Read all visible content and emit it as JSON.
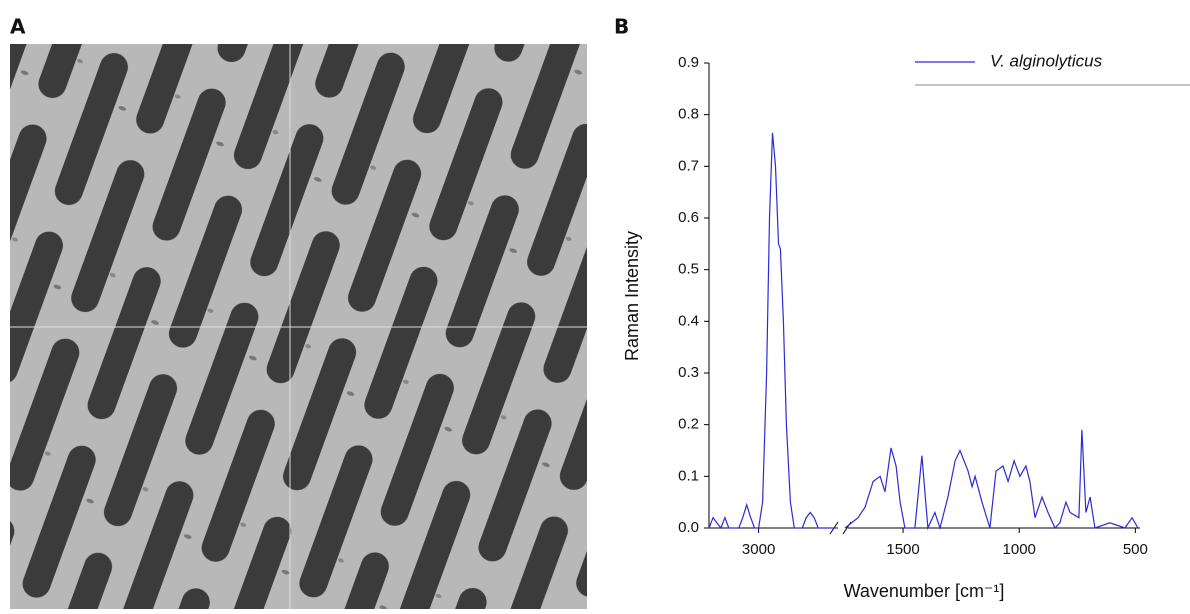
{
  "panel_a": {
    "label": "A"
  },
  "chart_data": {
    "type": "line",
    "panel_label": "B",
    "x_label": "Wavenumber [cm⁻¹]",
    "y_label": "Raman Intensity",
    "xlim": [
      [
        3250,
        2600
      ],
      [
        1750,
        480
      ]
    ],
    "xticks": [
      3000,
      1500,
      1000,
      500
    ],
    "ylim": [
      0,
      0.9
    ],
    "yticks": [
      {
        "value": 0,
        "label": "0.0"
      },
      0.1,
      0.2,
      0.3,
      0.4,
      0.5,
      0.6,
      0.7,
      0.8,
      0.9
    ],
    "legend": "top-right",
    "x": [
      3250,
      3230,
      3210,
      3190,
      3170,
      3150,
      3100,
      3080,
      3060,
      3040,
      3020,
      3000,
      2980,
      2960,
      2945,
      2930,
      2915,
      2900,
      2890,
      2875,
      2860,
      2840,
      2820,
      2780,
      2760,
      2740,
      2720,
      2700,
      2600,
      null,
      1750,
      1694,
      1664,
      1629,
      1599,
      1578,
      1552,
      1530,
      1513,
      1492,
      1449,
      1419,
      1393,
      1363,
      1341,
      1307,
      1276,
      1255,
      1220,
      1203,
      1190,
      1160,
      1126,
      1100,
      1070,
      1048,
      1022,
      997,
      971,
      954,
      932,
      902,
      876,
      846,
      825,
      799,
      781,
      743,
      730,
      713,
      695,
      674,
      609,
      545,
      514,
      489
    ],
    "series": [
      {
        "name": "V. alginolyticus",
        "color": "#2b2bd9",
        "values": [
          0.0,
          0.02,
          0.01,
          0.0,
          0.02,
          0.0,
          0.0,
          0.02,
          0.045,
          0.02,
          0.0,
          0.0,
          0.05,
          0.3,
          0.6,
          0.765,
          0.7,
          0.55,
          0.54,
          0.4,
          0.2,
          0.05,
          0.0,
          0.0,
          0.02,
          0.03,
          0.02,
          0.0,
          0.0,
          null,
          0.0,
          0.02,
          0.04,
          0.09,
          0.1,
          0.07,
          0.155,
          0.12,
          0.05,
          0.0,
          0.0,
          0.14,
          0.0,
          0.03,
          0.0,
          0.06,
          0.13,
          0.15,
          0.11,
          0.08,
          0.1,
          0.05,
          0.0,
          0.11,
          0.12,
          0.09,
          0.13,
          0.1,
          0.12,
          0.09,
          0.02,
          0.06,
          0.03,
          0.0,
          0.01,
          0.05,
          0.03,
          0.02,
          0.19,
          0.03,
          0.06,
          0.0,
          0.01,
          0.0,
          0.02,
          0.0
        ]
      }
    ]
  }
}
